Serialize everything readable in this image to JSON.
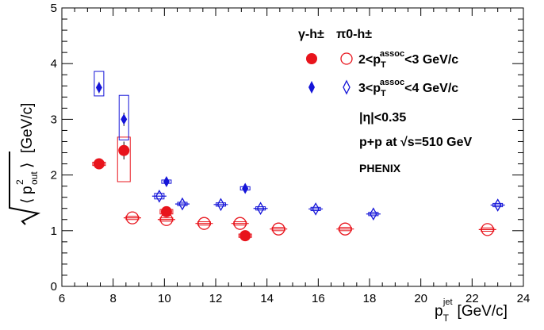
{
  "chart_data": {
    "type": "scatter",
    "title": "",
    "xlabel": {
      "base": "p",
      "sub": "T",
      "sup": "jet",
      "unit": "[GeV/c]"
    },
    "ylabel": {
      "unit": "[GeV/c]"
    },
    "xlim": [
      6,
      24
    ],
    "ylim": [
      0,
      5
    ],
    "xticks": [
      "6",
      "8",
      "10",
      "12",
      "14",
      "16",
      "18",
      "20",
      "22",
      "24"
    ],
    "yticks": [
      "0",
      "1",
      "2",
      "3",
      "4",
      "5"
    ],
    "grid": false,
    "legend_headers": [
      "γ-h±",
      "π0-h±"
    ],
    "legend_rows": [
      {
        "pre": "2<p",
        "sub": "T",
        "sup": "assoc",
        "post": "<3 GeV/c"
      },
      {
        "pre": "3<p",
        "sub": "T",
        "sup": "assoc",
        "post": "<4 GeV/c"
      }
    ],
    "annotations": [
      "|η|<0.35",
      "p+p at √s=510 GeV",
      "PHENIX"
    ],
    "series": [
      {
        "marker": "filled-circle",
        "color": "#e8141c",
        "points": [
          {
            "x": 7.45,
            "y": 2.2,
            "sys": [
              2.17,
              2.23
            ]
          },
          {
            "x": 8.42,
            "y": 2.44,
            "sys": [
              1.88,
              2.68
            ],
            "err": [
              2.28,
              2.6
            ]
          },
          {
            "x": 10.08,
            "y": 1.34,
            "sys": [
              1.3,
              1.38
            ]
          },
          {
            "x": 13.15,
            "y": 0.91,
            "sys": [
              0.88,
              0.94
            ]
          }
        ]
      },
      {
        "marker": "open-circle",
        "color": "#e8141c",
        "points": [
          {
            "x": 8.75,
            "y": 1.23,
            "sys": [
              1.2,
              1.26
            ]
          },
          {
            "x": 10.08,
            "y": 1.2,
            "sys": [
              1.17,
              1.23
            ]
          },
          {
            "x": 11.55,
            "y": 1.13,
            "sys": [
              1.1,
              1.16
            ]
          },
          {
            "x": 12.95,
            "y": 1.13,
            "sys": [
              1.1,
              1.16
            ]
          },
          {
            "x": 14.45,
            "y": 1.03,
            "sys": [
              1.0,
              1.06
            ]
          },
          {
            "x": 17.05,
            "y": 1.03,
            "sys": [
              1.0,
              1.06
            ]
          },
          {
            "x": 22.6,
            "y": 1.02,
            "sys": [
              0.99,
              1.05
            ]
          }
        ]
      },
      {
        "marker": "filled-diamond",
        "color": "#1414d8",
        "points": [
          {
            "x": 7.45,
            "y": 3.57,
            "sys": [
              3.42,
              3.86
            ],
            "err": [
              3.47,
              3.67
            ]
          },
          {
            "x": 8.42,
            "y": 3.0,
            "sys": [
              2.63,
              3.43
            ],
            "err": [
              2.88,
              3.12
            ]
          },
          {
            "x": 10.08,
            "y": 1.88,
            "sys": [
              1.85,
              1.91
            ]
          },
          {
            "x": 13.15,
            "y": 1.76,
            "sys": [
              1.73,
              1.79
            ]
          }
        ]
      },
      {
        "marker": "open-diamond",
        "color": "#1414d8",
        "points": [
          {
            "x": 9.8,
            "y": 1.62,
            "sys": [
              1.57,
              1.67
            ]
          },
          {
            "x": 10.7,
            "y": 1.48,
            "sys": [
              1.45,
              1.51
            ]
          },
          {
            "x": 12.2,
            "y": 1.47,
            "sys": [
              1.44,
              1.5
            ]
          },
          {
            "x": 13.75,
            "y": 1.4,
            "sys": [
              1.37,
              1.43
            ]
          },
          {
            "x": 15.9,
            "y": 1.39,
            "sys": [
              1.36,
              1.42
            ]
          },
          {
            "x": 18.15,
            "y": 1.3,
            "sys": [
              1.27,
              1.33
            ]
          },
          {
            "x": 23.0,
            "y": 1.46,
            "sys": [
              1.43,
              1.49
            ]
          }
        ]
      }
    ]
  }
}
